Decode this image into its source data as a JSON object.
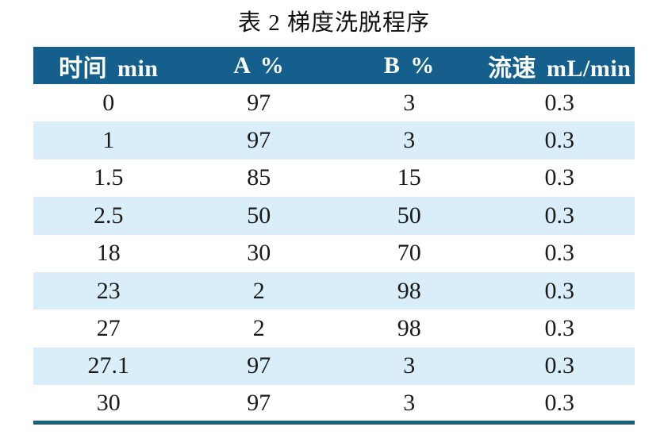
{
  "title": "表 2  梯度洗脱程序",
  "table": {
    "headers": [
      "时间 min",
      "A %",
      "B %",
      "流速 mL/min"
    ],
    "rows": [
      [
        "0",
        "97",
        "3",
        "0.3"
      ],
      [
        "1",
        "97",
        "3",
        "0.3"
      ],
      [
        "1.5",
        "85",
        "15",
        "0.3"
      ],
      [
        "2.5",
        "50",
        "50",
        "0.3"
      ],
      [
        "18",
        "30",
        "70",
        "0.3"
      ],
      [
        "23",
        "2",
        "98",
        "0.3"
      ],
      [
        "27",
        "2",
        "98",
        "0.3"
      ],
      [
        "27.1",
        "97",
        "3",
        "0.3"
      ],
      [
        "30",
        "97",
        "3",
        "0.3"
      ]
    ]
  },
  "colors": {
    "header_bg": "#145F8C",
    "header_text": "#FFFFFF",
    "row_bg": "#FFFFFF",
    "row_alt_bg": "#D9EEF9",
    "bottom_border": "#1A5F7E",
    "text": "#1A1A1A"
  },
  "chart_data": {
    "type": "table",
    "title": "表 2 梯度洗脱程序",
    "columns": [
      "时间 min",
      "A %",
      "B %",
      "流速 mL/min"
    ],
    "rows": [
      [
        0,
        97,
        3,
        0.3
      ],
      [
        1,
        97,
        3,
        0.3
      ],
      [
        1.5,
        85,
        15,
        0.3
      ],
      [
        2.5,
        50,
        50,
        0.3
      ],
      [
        18,
        30,
        70,
        0.3
      ],
      [
        23,
        2,
        98,
        0.3
      ],
      [
        27,
        2,
        98,
        0.3
      ],
      [
        27.1,
        97,
        3,
        0.3
      ],
      [
        30,
        97,
        3,
        0.3
      ]
    ]
  }
}
